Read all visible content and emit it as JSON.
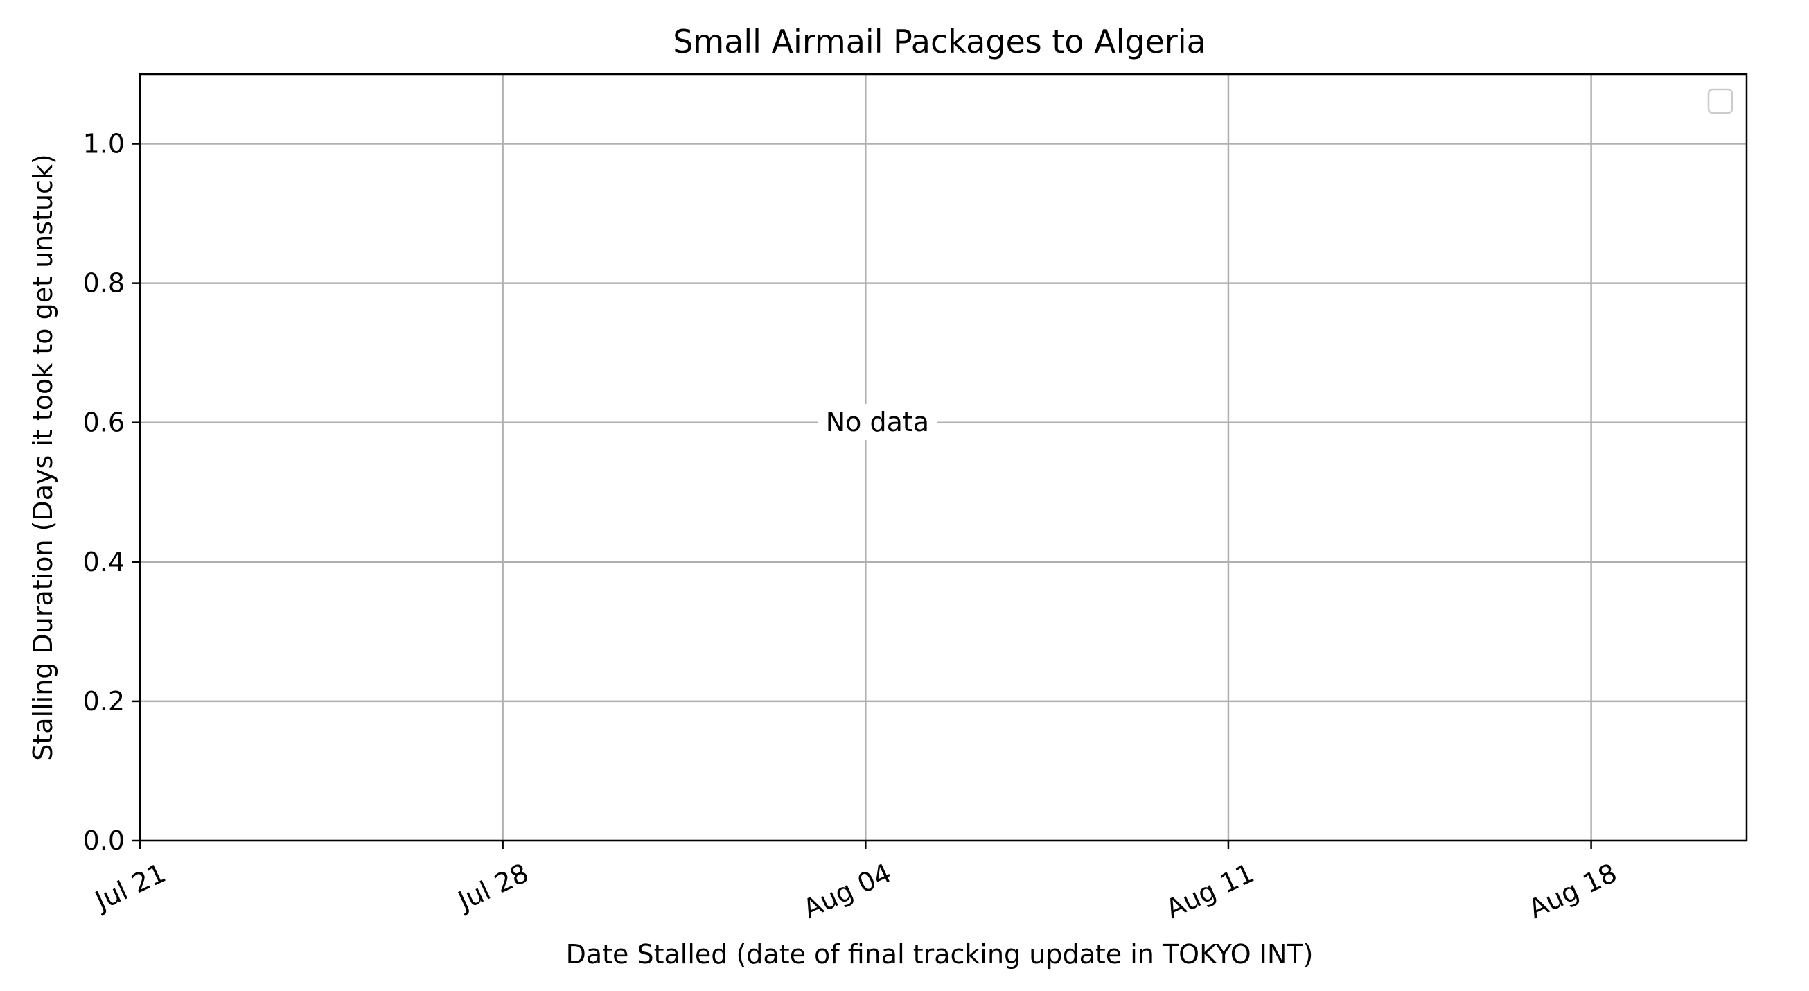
{
  "chart_data": {
    "type": "scatter",
    "title": "Small Airmail Packages to Algeria",
    "xlabel": "Date Stalled (date of final tracking update in TOKYO INT)",
    "ylabel": "Stalling Duration (Days it took to get unstuck)",
    "x_ticks": [
      "Jul 21",
      "Jul 28",
      "Aug 04",
      "Aug 11",
      "Aug 18"
    ],
    "y_ticks": [
      "0.0",
      "0.2",
      "0.4",
      "0.6",
      "0.8",
      "1.0"
    ],
    "ylim": [
      0,
      1.1
    ],
    "xlim_days_from_first_tick": [
      0,
      31
    ],
    "grid": true,
    "legend_placement": "top-right",
    "legend_entries": [],
    "series": [],
    "annotation": "No data",
    "colors": {
      "grid": "#b0b0b0",
      "axes": "#000000",
      "background": "#ffffff"
    }
  }
}
